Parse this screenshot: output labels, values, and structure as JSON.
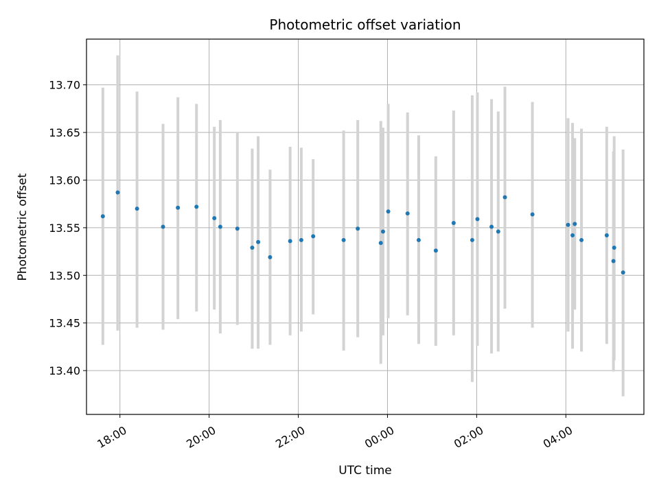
{
  "chart_data": {
    "type": "scatter",
    "title": "Photometric offset variation",
    "xlabel": "UTC time",
    "ylabel": "Photometric offset",
    "x_unit": "hours",
    "xlim": [
      "17:15",
      "05:45"
    ],
    "ylim": [
      13.354,
      13.748
    ],
    "x_ticks": [
      {
        "t": "18:00",
        "label": "18:00"
      },
      {
        "t": "20:00",
        "label": "20:00"
      },
      {
        "t": "22:00",
        "label": "22:00"
      },
      {
        "t": "00:00",
        "label": "00:00"
      },
      {
        "t": "02:00",
        "label": "02:00"
      },
      {
        "t": "04:00",
        "label": "04:00"
      }
    ],
    "y_ticks": [
      13.4,
      13.45,
      13.5,
      13.55,
      13.6,
      13.65,
      13.7
    ],
    "grid": true,
    "marker_color": "#1f77b4",
    "errorbar_color": "#d3d3d3",
    "points": [
      {
        "t": "17:37",
        "y": 13.562,
        "lo": 13.427,
        "hi": 13.697
      },
      {
        "t": "17:57",
        "y": 13.587,
        "lo": 13.442,
        "hi": 13.731
      },
      {
        "t": "18:23",
        "y": 13.57,
        "lo": 13.445,
        "hi": 13.693
      },
      {
        "t": "18:58",
        "y": 13.551,
        "lo": 13.443,
        "hi": 13.659
      },
      {
        "t": "19:18",
        "y": 13.571,
        "lo": 13.454,
        "hi": 13.687
      },
      {
        "t": "19:43",
        "y": 13.572,
        "lo": 13.462,
        "hi": 13.68
      },
      {
        "t": "20:07",
        "y": 13.56,
        "lo": 13.464,
        "hi": 13.656
      },
      {
        "t": "20:15",
        "y": 13.551,
        "lo": 13.439,
        "hi": 13.663
      },
      {
        "t": "20:38",
        "y": 13.549,
        "lo": 13.448,
        "hi": 13.65
      },
      {
        "t": "20:58",
        "y": 13.529,
        "lo": 13.423,
        "hi": 13.633
      },
      {
        "t": "21:06",
        "y": 13.535,
        "lo": 13.423,
        "hi": 13.646
      },
      {
        "t": "21:22",
        "y": 13.519,
        "lo": 13.427,
        "hi": 13.611
      },
      {
        "t": "21:49",
        "y": 13.536,
        "lo": 13.437,
        "hi": 13.635
      },
      {
        "t": "22:04",
        "y": 13.537,
        "lo": 13.441,
        "hi": 13.634
      },
      {
        "t": "22:20",
        "y": 13.541,
        "lo": 13.459,
        "hi": 13.622
      },
      {
        "t": "23:01",
        "y": 13.537,
        "lo": 13.421,
        "hi": 13.652
      },
      {
        "t": "23:20",
        "y": 13.549,
        "lo": 13.435,
        "hi": 13.663
      },
      {
        "t": "23:51",
        "y": 13.534,
        "lo": 13.407,
        "hi": 13.662
      },
      {
        "t": "23:54",
        "y": 13.546,
        "lo": 13.437,
        "hi": 13.655
      },
      {
        "t": "00:01",
        "y": 13.567,
        "lo": 13.455,
        "hi": 13.68
      },
      {
        "t": "00:27",
        "y": 13.565,
        "lo": 13.458,
        "hi": 13.671
      },
      {
        "t": "00:42",
        "y": 13.537,
        "lo": 13.428,
        "hi": 13.647
      },
      {
        "t": "01:05",
        "y": 13.526,
        "lo": 13.426,
        "hi": 13.625
      },
      {
        "t": "01:29",
        "y": 13.555,
        "lo": 13.437,
        "hi": 13.673
      },
      {
        "t": "01:54",
        "y": 13.537,
        "lo": 13.388,
        "hi": 13.689
      },
      {
        "t": "02:01",
        "y": 13.559,
        "lo": 13.426,
        "hi": 13.692
      },
      {
        "t": "02:20",
        "y": 13.551,
        "lo": 13.418,
        "hi": 13.685
      },
      {
        "t": "02:29",
        "y": 13.546,
        "lo": 13.42,
        "hi": 13.672
      },
      {
        "t": "02:38",
        "y": 13.582,
        "lo": 13.465,
        "hi": 13.698
      },
      {
        "t": "03:15",
        "y": 13.564,
        "lo": 13.445,
        "hi": 13.682
      },
      {
        "t": "04:03",
        "y": 13.553,
        "lo": 13.441,
        "hi": 13.665
      },
      {
        "t": "04:09",
        "y": 13.542,
        "lo": 13.423,
        "hi": 13.66
      },
      {
        "t": "04:12",
        "y": 13.554,
        "lo": 13.464,
        "hi": 13.644
      },
      {
        "t": "04:21",
        "y": 13.537,
        "lo": 13.42,
        "hi": 13.654
      },
      {
        "t": "04:55",
        "y": 13.542,
        "lo": 13.428,
        "hi": 13.656
      },
      {
        "t": "05:05",
        "y": 13.529,
        "lo": 13.411,
        "hi": 13.646
      },
      {
        "t": "05:04",
        "y": 13.515,
        "lo": 13.399,
        "hi": 13.63
      },
      {
        "t": "05:17",
        "y": 13.503,
        "lo": 13.373,
        "hi": 13.632
      }
    ]
  }
}
